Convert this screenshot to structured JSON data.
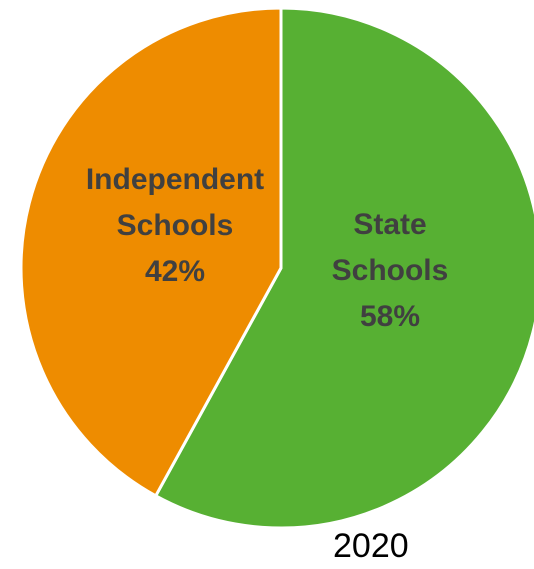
{
  "chart_data": {
    "type": "pie",
    "categories": [
      "State Schools",
      "Independent Schools"
    ],
    "values": [
      58,
      42
    ],
    "labels": [
      [
        "State",
        "Schools",
        "58%"
      ],
      [
        "Independent",
        "Schools",
        "42%"
      ]
    ],
    "colors": [
      "#57b033",
      "#ee8c00"
    ],
    "label_color": "#404040",
    "border_color": "#ffffff",
    "start_angle_deg": 0,
    "direction": "clockwise",
    "annotation": "2020"
  }
}
